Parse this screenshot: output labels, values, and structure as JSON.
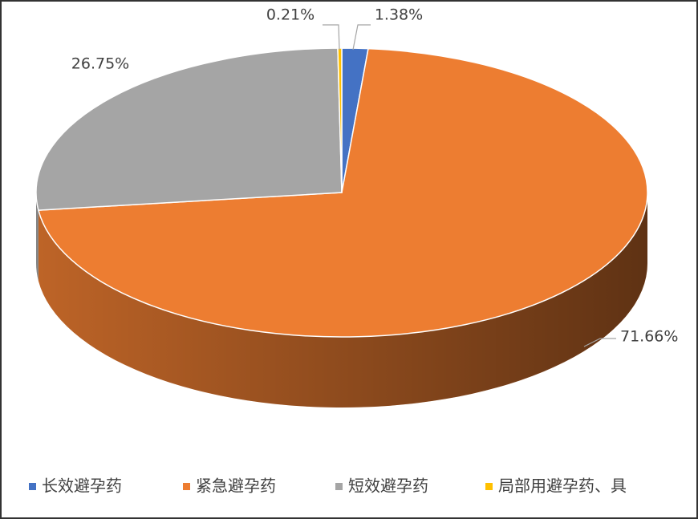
{
  "chart_data": {
    "type": "pie3d",
    "categories": [
      "长效避孕药",
      "紧急避孕药",
      "短效避孕药",
      "局部用避孕药、具"
    ],
    "values": [
      1.38,
      71.66,
      26.75,
      0.21
    ],
    "value_labels": [
      "1.38%",
      "71.66%",
      "26.75%",
      "0.21%"
    ],
    "colors": [
      "#4472c4",
      "#ed7d31",
      "#a5a5a5",
      "#ffc000"
    ],
    "legend": "bottom"
  }
}
